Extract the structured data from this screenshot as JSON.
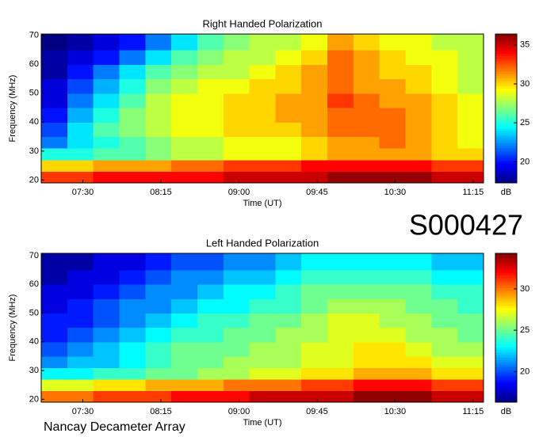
{
  "id_label": "S000427",
  "footer": "Nancay Decameter Array",
  "chart_data": [
    {
      "type": "heatmap",
      "title": "Right Handed Polarization",
      "xlabel": "Time (UT)",
      "ylabel": "Frequency (MHz)",
      "colorbar_label": "dB",
      "colormap": "jet",
      "xlim": [
        "07:06",
        "11:21"
      ],
      "xticks": [
        "07:30",
        "08:15",
        "09:00",
        "09:45",
        "10:30",
        "11:15"
      ],
      "ylim": [
        19,
        70.5
      ],
      "yticks": [
        20,
        30,
        40,
        50,
        60,
        70
      ],
      "zlim": [
        17.3,
        36.4
      ],
      "zticks": [
        20,
        25,
        30,
        35
      ],
      "xbins": [
        "07:06",
        "07:21",
        "07:36",
        "07:51",
        "08:06",
        "08:21",
        "08:36",
        "08:51",
        "09:06",
        "09:21",
        "09:36",
        "09:51",
        "10:06",
        "10:21",
        "10:36",
        "10:51",
        "11:06",
        "11:21"
      ],
      "ybins": [
        19,
        23,
        27,
        31,
        35,
        40,
        45,
        50,
        55,
        60,
        65,
        70.5
      ],
      "values": [
        [
          33,
          33,
          34,
          34,
          34,
          34,
          34,
          35,
          35,
          35,
          35,
          36,
          36,
          36,
          36,
          35,
          35
        ],
        [
          30,
          30,
          31,
          31,
          31,
          32,
          32,
          33,
          33,
          33,
          34,
          34,
          34,
          34,
          34,
          33,
          33
        ],
        [
          25,
          25,
          26,
          26,
          27,
          28,
          28,
          29,
          29,
          29,
          30,
          31,
          31,
          31,
          31,
          30,
          30
        ],
        [
          22,
          24,
          25,
          26,
          27,
          28,
          28,
          29,
          29,
          29,
          30,
          31,
          31,
          32,
          31,
          30,
          29
        ],
        [
          21,
          24,
          26,
          27,
          28,
          29,
          29,
          30,
          30,
          30,
          31,
          32,
          32,
          32,
          31,
          30,
          29
        ],
        [
          20,
          23,
          25,
          27,
          28,
          29,
          29,
          30,
          30,
          31,
          31,
          32,
          32,
          32,
          31,
          30,
          29
        ],
        [
          19,
          22,
          24,
          26,
          28,
          29,
          29,
          30,
          30,
          31,
          31,
          33,
          32,
          31,
          31,
          30,
          29
        ],
        [
          19,
          21,
          23,
          25,
          27,
          28,
          29,
          29,
          30,
          30,
          31,
          32,
          31,
          31,
          30,
          29,
          28
        ],
        [
          18,
          20,
          22,
          24,
          26,
          27,
          28,
          28,
          29,
          30,
          31,
          32,
          31,
          30,
          30,
          29,
          28
        ],
        [
          18,
          19,
          20,
          22,
          24,
          26,
          27,
          28,
          28,
          29,
          30,
          32,
          31,
          30,
          29,
          29,
          28
        ],
        [
          17,
          18,
          19,
          20,
          22,
          24,
          26,
          27,
          28,
          28,
          29,
          31,
          30,
          29,
          29,
          28,
          28
        ]
      ]
    },
    {
      "type": "heatmap",
      "title": "Left Handed Polarization",
      "xlabel": "Time (UT)",
      "ylabel": "Frequency (MHz)",
      "colorbar_label": "dB",
      "colormap": "jet",
      "xlim": [
        "07:06",
        "11:21"
      ],
      "xticks": [
        "07:30",
        "08:15",
        "09:00",
        "09:45",
        "10:30",
        "11:15"
      ],
      "ylim": [
        19,
        70.8
      ],
      "yticks": [
        20,
        30,
        40,
        50,
        60,
        70
      ],
      "zlim": [
        16.3,
        34.3
      ],
      "zticks": [
        20,
        25,
        30
      ],
      "xbins": [
        "07:06",
        "07:21",
        "07:36",
        "07:51",
        "08:06",
        "08:21",
        "08:36",
        "08:51",
        "09:06",
        "09:21",
        "09:36",
        "09:51",
        "10:06",
        "10:21",
        "10:36",
        "10:51",
        "11:06",
        "11:21"
      ],
      "ybins": [
        19,
        23,
        27,
        31,
        35,
        40,
        45,
        50,
        55,
        60,
        65,
        70.8
      ],
      "values": [
        [
          30,
          30,
          31,
          31,
          31,
          32,
          32,
          32,
          33,
          33,
          33,
          33,
          34,
          34,
          34,
          33,
          33
        ],
        [
          27,
          27,
          28,
          28,
          29,
          29,
          29,
          30,
          30,
          30,
          31,
          31,
          32,
          32,
          32,
          31,
          31
        ],
        [
          23,
          23,
          24,
          24,
          25,
          25,
          26,
          26,
          27,
          27,
          28,
          28,
          29,
          29,
          29,
          28,
          28
        ],
        [
          21,
          22,
          22,
          23,
          24,
          25,
          25,
          26,
          26,
          26,
          27,
          27,
          28,
          28,
          28,
          27,
          27
        ],
        [
          20,
          21,
          22,
          23,
          24,
          25,
          25,
          25,
          26,
          26,
          27,
          27,
          28,
          28,
          27,
          26,
          26
        ],
        [
          19,
          20,
          21,
          22,
          23,
          24,
          24,
          25,
          25,
          26,
          26,
          27,
          27,
          27,
          26,
          26,
          25
        ],
        [
          19,
          19,
          20,
          21,
          22,
          23,
          24,
          24,
          25,
          25,
          26,
          27,
          27,
          26,
          26,
          25,
          25
        ],
        [
          18,
          19,
          20,
          21,
          21,
          22,
          23,
          23,
          24,
          24,
          25,
          26,
          26,
          26,
          25,
          25,
          24
        ],
        [
          18,
          18,
          19,
          20,
          21,
          21,
          22,
          23,
          23,
          24,
          25,
          25,
          25,
          25,
          25,
          24,
          24
        ],
        [
          17,
          18,
          18,
          19,
          20,
          21,
          21,
          22,
          22,
          23,
          24,
          24,
          24,
          24,
          24,
          23,
          23
        ],
        [
          17,
          17,
          18,
          18,
          19,
          20,
          20,
          21,
          21,
          22,
          23,
          23,
          23,
          23,
          23,
          22,
          22
        ]
      ]
    }
  ]
}
